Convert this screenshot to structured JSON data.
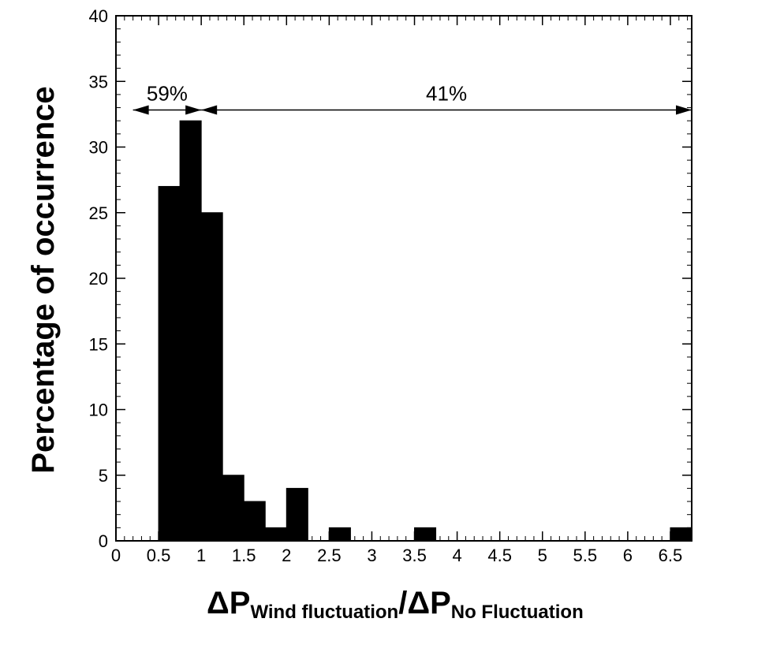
{
  "chart_data": {
    "type": "bar",
    "bin_width": 0.25,
    "bins": [
      {
        "left": 0.5,
        "right": 0.75,
        "value": 27
      },
      {
        "left": 0.75,
        "right": 1.0,
        "value": 32
      },
      {
        "left": 1.0,
        "right": 1.25,
        "value": 25
      },
      {
        "left": 1.25,
        "right": 1.5,
        "value": 5
      },
      {
        "left": 1.5,
        "right": 1.75,
        "value": 3
      },
      {
        "left": 1.75,
        "right": 2.0,
        "value": 1
      },
      {
        "left": 2.0,
        "right": 2.25,
        "value": 4
      },
      {
        "left": 2.5,
        "right": 2.75,
        "value": 1
      },
      {
        "left": 3.5,
        "right": 3.75,
        "value": 1
      },
      {
        "left": 6.5,
        "right": 6.75,
        "value": 1
      }
    ],
    "xlim": [
      0,
      6.75
    ],
    "ylim": [
      0,
      40
    ],
    "xticks": [
      "0",
      "0.5",
      "1",
      "1.5",
      "2",
      "2.5",
      "3",
      "3.5",
      "4",
      "4.5",
      "5",
      "5.5",
      "6",
      "6.5"
    ],
    "yticks": [
      "0",
      "5",
      "10",
      "15",
      "20",
      "25",
      "30",
      "35",
      "40"
    ],
    "ylabel": "Percentage of occurrence",
    "xlabel": {
      "delta": "Δ",
      "p": "P",
      "sub1": "Wind fluctuation",
      "slash": "/",
      "sub2": "No Fluctuation"
    },
    "annotations": [
      {
        "text": "59%",
        "x_from": 0.2,
        "x_to": 1.0,
        "y": 33
      },
      {
        "text": "41%",
        "x_from": 1.0,
        "x_to": 6.75,
        "y": 33
      }
    ],
    "grid": false,
    "bar_color": "#000000"
  }
}
